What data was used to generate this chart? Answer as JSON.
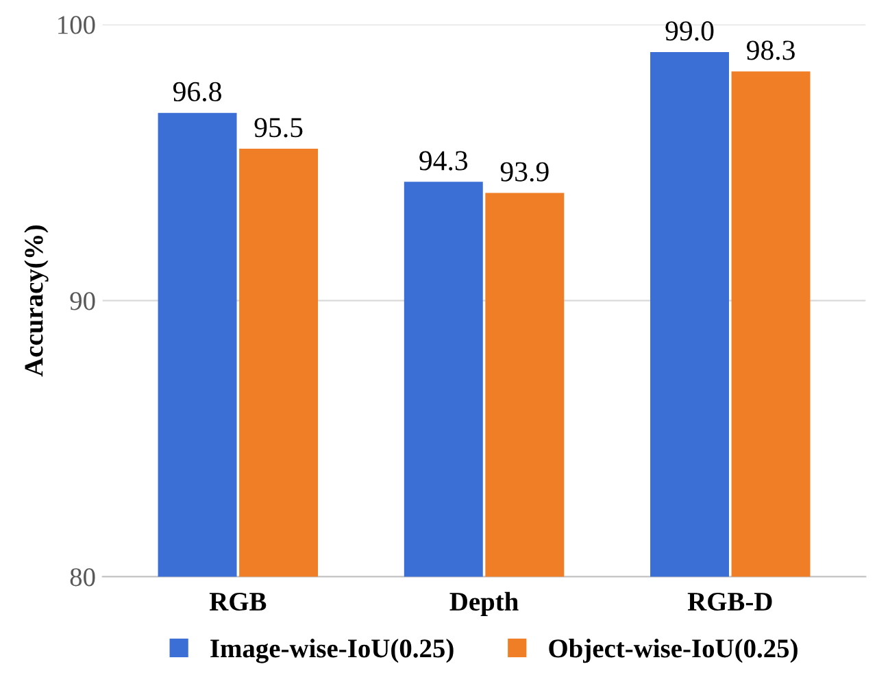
{
  "chart_data": {
    "type": "bar",
    "ylabel": "Accuracy(%)",
    "categories": [
      "RGB",
      "Depth",
      "RGB-D"
    ],
    "series": [
      {
        "name": "Image-wise-IoU(0.25)",
        "color": "#3b6fd6",
        "values": [
          96.8,
          94.3,
          99.0
        ],
        "value_labels": [
          "96.8",
          "94.3",
          "99.0"
        ]
      },
      {
        "name": "Object-wise-IoU(0.25)",
        "color": "#f07e26",
        "values": [
          95.5,
          93.9,
          98.3
        ],
        "value_labels": [
          "95.5",
          "93.9",
          "98.3"
        ]
      }
    ],
    "ylim": [
      80,
      100
    ],
    "yticks": [
      80,
      90,
      100
    ],
    "grid": "y",
    "legend": "bottom"
  }
}
